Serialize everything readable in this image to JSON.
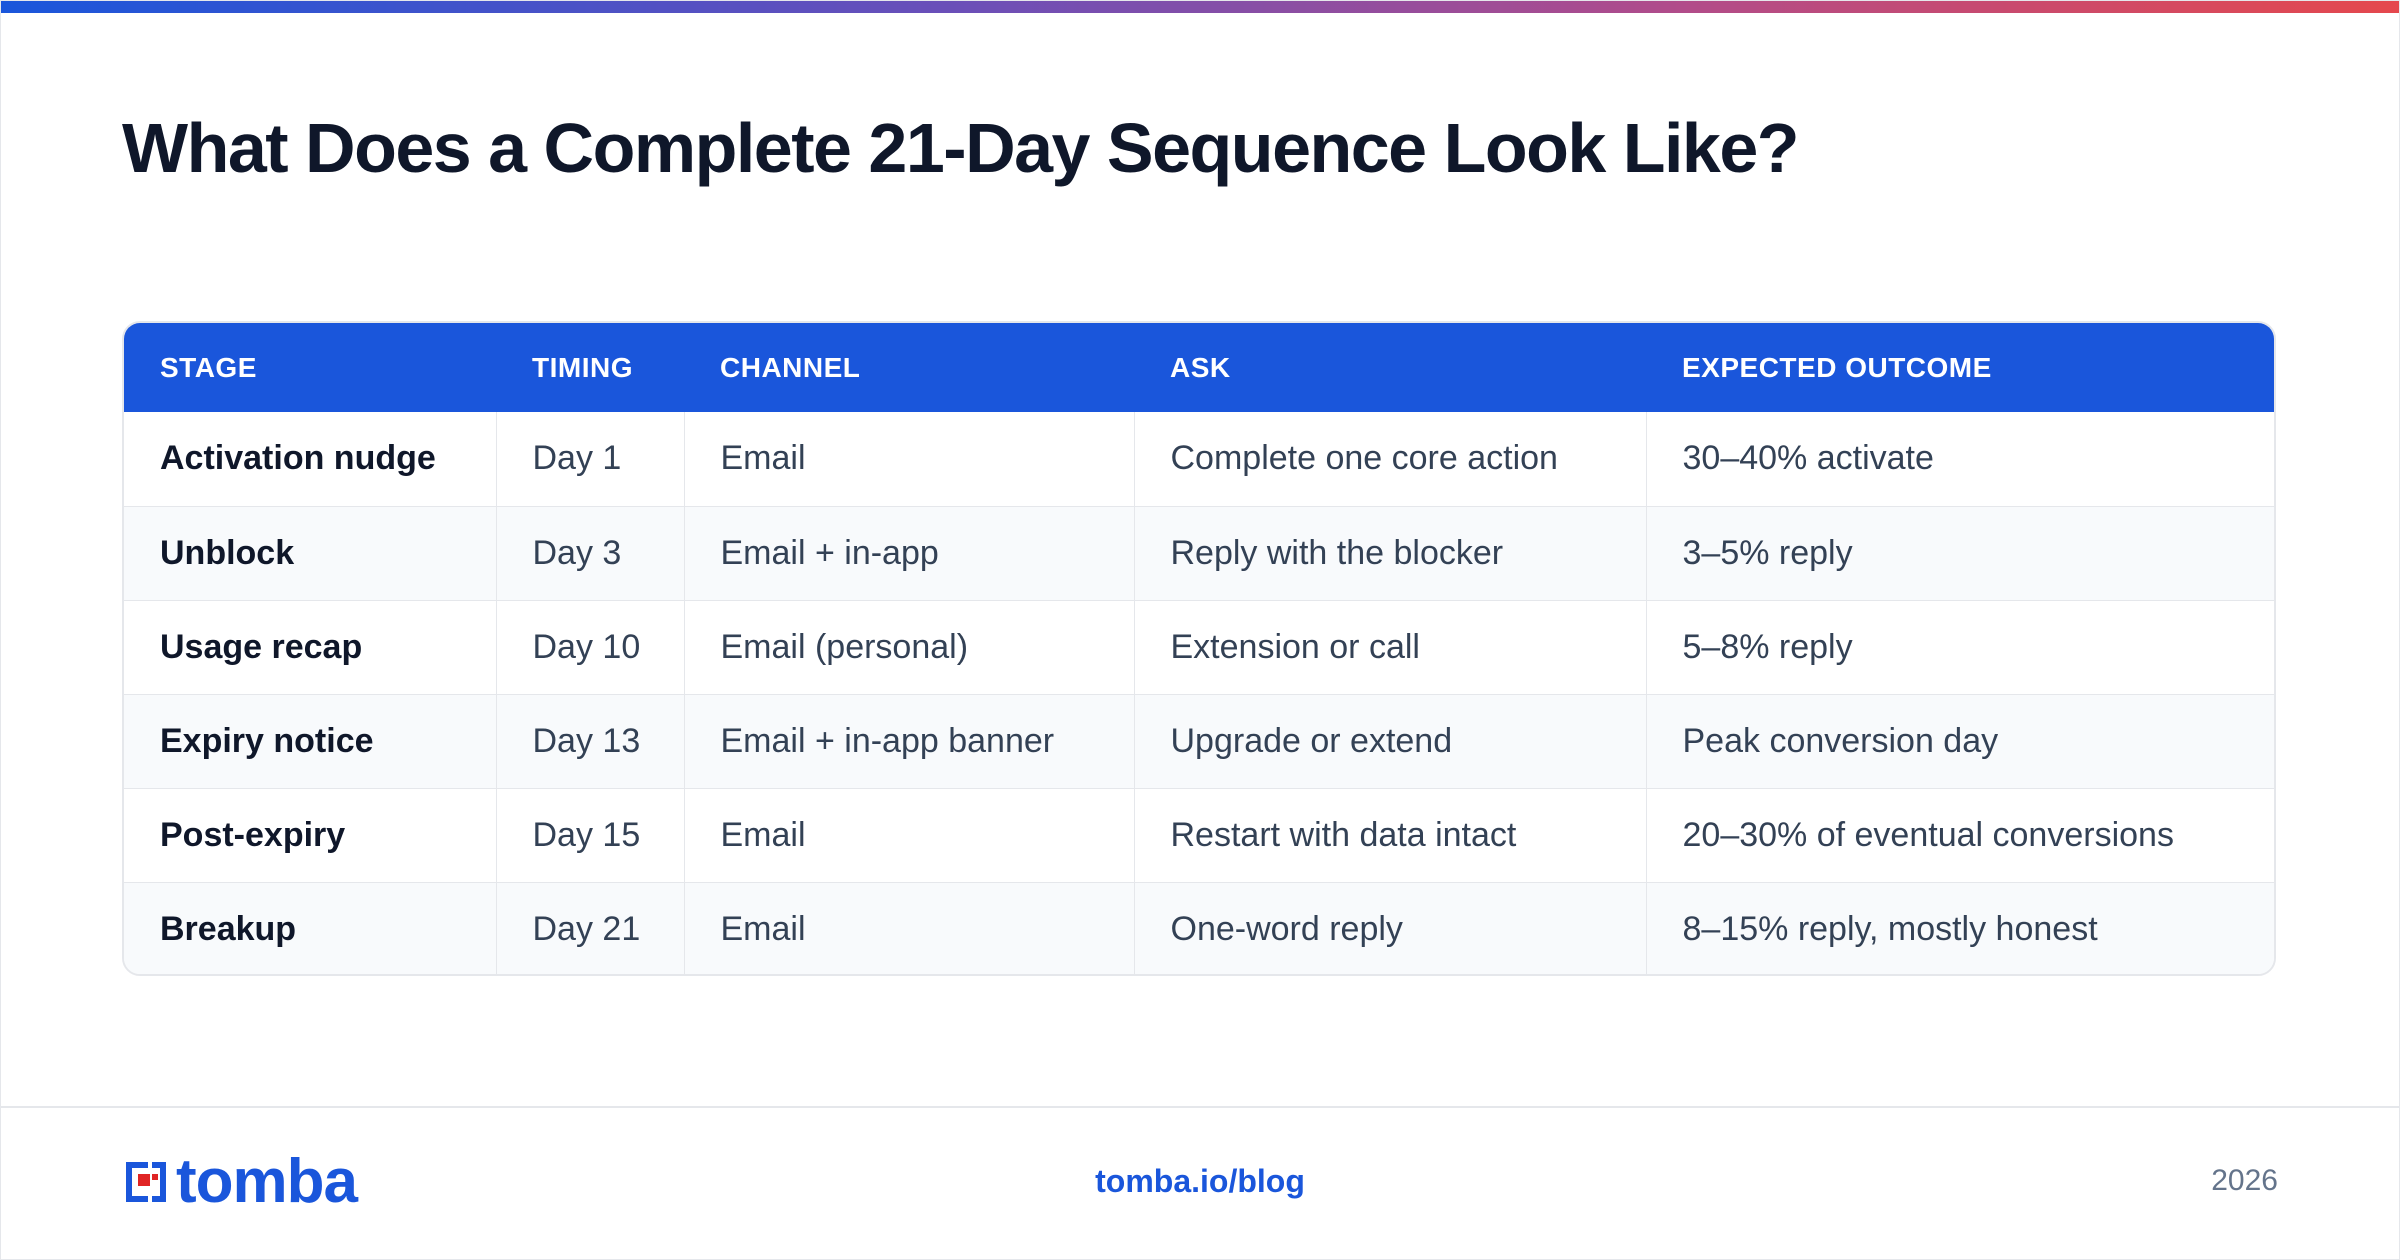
{
  "page": {
    "title": "What Does a Complete 21-Day Sequence Look Like?"
  },
  "table": {
    "headers": [
      "STAGE",
      "TIMING",
      "CHANNEL",
      "ASK",
      "EXPECTED OUTCOME"
    ],
    "rows": [
      {
        "stage": "Activation nudge",
        "timing": "Day 1",
        "channel": "Email",
        "ask": "Complete one core action",
        "outcome": "30–40% activate"
      },
      {
        "stage": "Unblock",
        "timing": "Day 3",
        "channel": "Email + in-app",
        "ask": "Reply with the blocker",
        "outcome": "3–5% reply"
      },
      {
        "stage": "Usage recap",
        "timing": "Day 10",
        "channel": "Email (personal)",
        "ask": "Extension or call",
        "outcome": "5–8% reply"
      },
      {
        "stage": "Expiry notice",
        "timing": "Day 13",
        "channel": "Email + in-app banner",
        "ask": "Upgrade or extend",
        "outcome": "Peak conversion day"
      },
      {
        "stage": "Post-expiry",
        "timing": "Day 15",
        "channel": "Email",
        "ask": "Restart with data intact",
        "outcome": "20–30% of eventual conversions"
      },
      {
        "stage": "Breakup",
        "timing": "Day 21",
        "channel": "Email",
        "ask": "One-word reply",
        "outcome": "8–15% reply, mostly honest"
      }
    ]
  },
  "footer": {
    "brand": "tomba",
    "link": "tomba.io/blog",
    "year": "2026"
  },
  "colors": {
    "accent": "#1a56db",
    "logo_red": "#e02424",
    "title": "#0f172a",
    "body_text": "#334155",
    "muted": "#64748b",
    "stripe": "#f8fafc",
    "border": "#e5e7eb"
  },
  "icons": {
    "logo_mark": "tomba-logo-icon"
  }
}
